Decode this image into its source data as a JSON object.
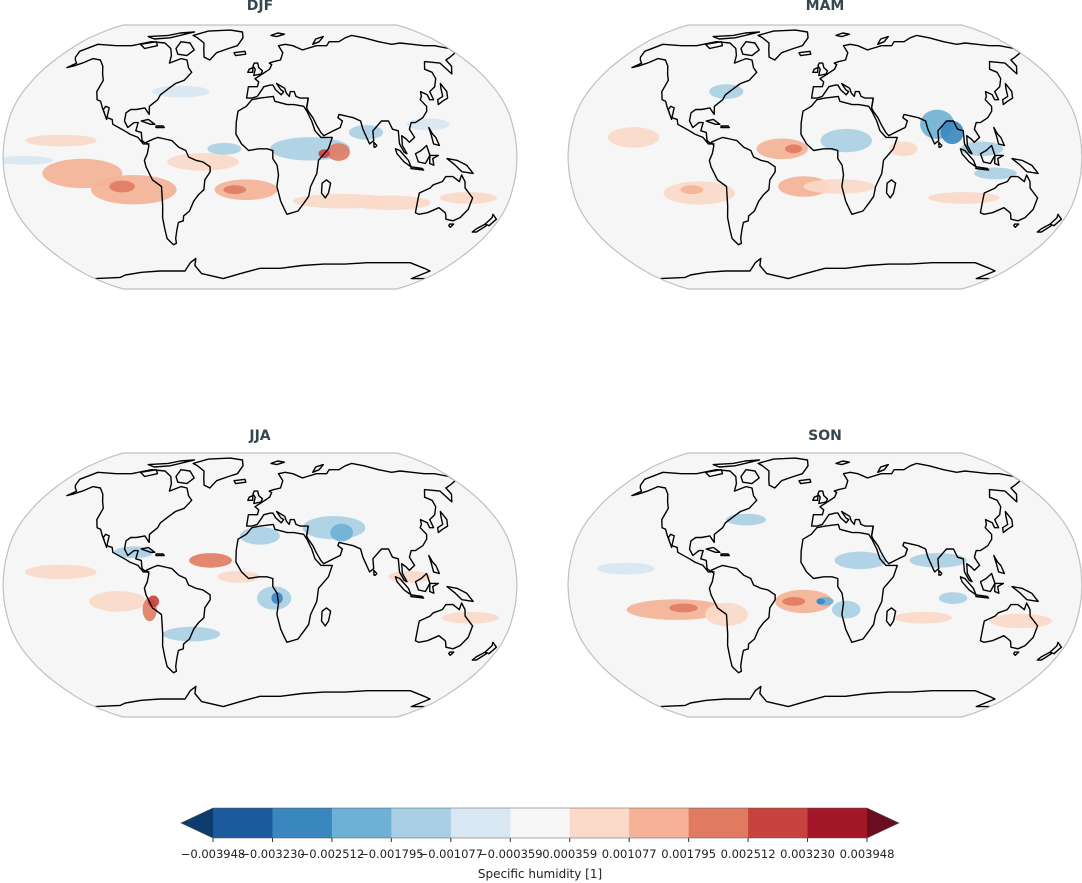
{
  "panels": [
    {
      "id": "djf",
      "title": "DJF"
    },
    {
      "id": "mam",
      "title": "MAM"
    },
    {
      "id": "jja",
      "title": "JJA"
    },
    {
      "id": "son",
      "title": "SON"
    }
  ],
  "colorbar": {
    "label": "Specific humidity [1]",
    "ticks": [
      "−0.003948",
      "−0.003230",
      "−0.002512",
      "−0.001795",
      "−0.001077",
      "−0.000359",
      "0.000359",
      "0.001077",
      "0.001795",
      "0.002512",
      "0.003230",
      "0.003948"
    ],
    "colors": [
      "#1b5a9c",
      "#3a87c0",
      "#6fb0d6",
      "#a8cfe4",
      "#d8e7f1",
      "#f6f6f6",
      "#fbd9c9",
      "#f4b196",
      "#e07b62",
      "#c8433d",
      "#a31729"
    ],
    "under_color": "#0c3b6e",
    "over_color": "#6b0d20"
  },
  "map": {
    "projection": "robinson",
    "ocean_color": "#f6f6f6",
    "border_color": "#c0c0c0",
    "coast_color": "#000000"
  }
}
